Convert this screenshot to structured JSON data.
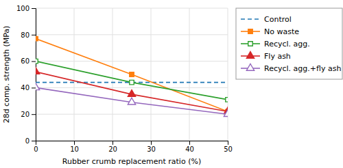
{
  "chart_data": {
    "type": "line",
    "x": [
      0,
      25,
      50
    ],
    "series": [
      {
        "name": "Control",
        "values": [
          44,
          44,
          44
        ],
        "line_style": "dashed"
      },
      {
        "name": "No waste",
        "values": [
          77,
          50,
          22
        ],
        "line_style": "solid",
        "marker": "square"
      },
      {
        "name": "Recycl. agg.",
        "values": [
          60,
          44,
          31
        ],
        "line_style": "solid",
        "marker": "open-square"
      },
      {
        "name": "Fly ash",
        "values": [
          52,
          35,
          22
        ],
        "line_style": "solid",
        "marker": "triangle"
      },
      {
        "name": "Recycl. agg.+fly ash",
        "values": [
          40,
          29,
          20
        ],
        "line_style": "solid",
        "marker": "open-triangle"
      }
    ],
    "xlabel": "Rubber crumb replacement ratio (%)",
    "ylabel": "28d comp. strength (MPa)",
    "xlim": [
      0,
      50
    ],
    "ylim": [
      0,
      100
    ],
    "xticks": [
      0,
      10,
      20,
      30,
      40,
      50
    ],
    "yticks": [
      0,
      20,
      40,
      60,
      80,
      100
    ],
    "grid": true,
    "legend": "right"
  }
}
